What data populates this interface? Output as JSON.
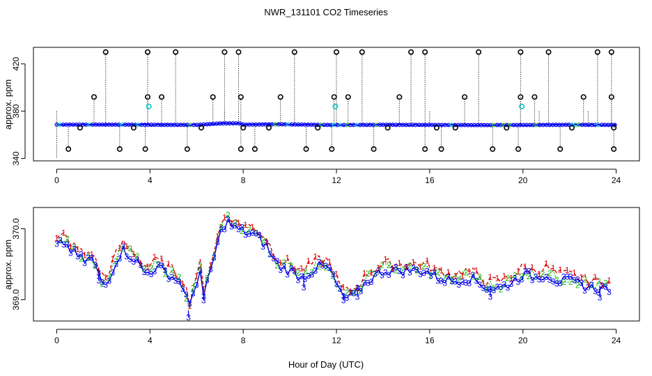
{
  "chart_data": {
    "title": "NWR_131101  CO2 Timeseries",
    "xlabel": "Hour of Day (UTC)",
    "x_ticks": [
      0,
      4,
      8,
      12,
      16,
      20,
      24
    ],
    "colors": {
      "black": "#000000",
      "blue": "#0000ee",
      "cyan": "#00cccc",
      "red": "#dd0000",
      "green": "#22bb22",
      "drop": "#444444"
    },
    "panels": [
      {
        "type": "scatter",
        "ylabel": "approx. ppm",
        "xlim": [
          -1,
          25
        ],
        "ylim": [
          338,
          434
        ],
        "y_ticks": [
          340,
          380,
          420
        ],
        "baseline": [
          [
            0,
            368.6
          ],
          [
            2,
            368.6
          ],
          [
            4,
            368.5
          ],
          [
            6,
            368.4
          ],
          [
            7,
            369.6
          ],
          [
            7.8,
            369.8
          ],
          [
            8,
            368.6
          ],
          [
            9.5,
            368.9
          ],
          [
            12,
            368.3
          ],
          [
            14,
            368.5
          ],
          [
            16,
            368.4
          ],
          [
            18,
            368.2
          ],
          [
            20,
            368.3
          ],
          [
            22,
            368.5
          ],
          [
            24,
            368.4
          ]
        ],
        "spikes_high_430": [
          2.1,
          3.9,
          5.1,
          7.2,
          7.8,
          10.2,
          12.0,
          13.1,
          15.2,
          15.8,
          18.1,
          19.9,
          21.1,
          23.2,
          23.8
        ],
        "spikes_mid_392": [
          1.6,
          3.9,
          4.5,
          6.7,
          7.9,
          9.6,
          11.9,
          12.5,
          14.7,
          17.5,
          19.9,
          20.5,
          22.6,
          23.8
        ],
        "points_low_348": [
          0.5,
          2.7,
          3.8,
          5.6,
          7.9,
          8.5,
          10.7,
          11.8,
          13.6,
          15.8,
          16.5,
          18.7,
          19.8,
          21.6,
          23.9
        ],
        "points_366": [
          1.0,
          3.3,
          6.2,
          8.0,
          9.1,
          11.2,
          14.2,
          16.3,
          17.1,
          19.3,
          22.1,
          23.9
        ],
        "cyan_points_384": [
          3.95,
          11.95,
          19.95
        ]
      },
      {
        "type": "line",
        "ylabel": "approx. ppm",
        "xlim": [
          -1,
          25
        ],
        "ylim": [
          368.7,
          370.3
        ],
        "y_ticks": [
          369.0,
          370.0
        ],
        "y_tick_labels": [
          "369.0",
          "370.0"
        ],
        "series": [
          {
            "name": "1",
            "color": "#dd0000"
          },
          {
            "name": "2",
            "color": "#22bb22"
          },
          {
            "name": "3",
            "color": "#0000ee"
          }
        ],
        "profile": [
          [
            0,
            369.78
          ],
          [
            0.3,
            369.85
          ],
          [
            0.7,
            369.7
          ],
          [
            1.2,
            369.58
          ],
          [
            1.5,
            369.62
          ],
          [
            1.9,
            369.3
          ],
          [
            2.1,
            369.25
          ],
          [
            2.5,
            369.55
          ],
          [
            2.8,
            369.75
          ],
          [
            3.2,
            369.65
          ],
          [
            3.5,
            369.55
          ],
          [
            3.8,
            369.4
          ],
          [
            4.3,
            369.5
          ],
          [
            4.8,
            369.4
          ],
          [
            5.2,
            369.3
          ],
          [
            5.5,
            369.2
          ],
          [
            5.65,
            368.85
          ],
          [
            5.9,
            369.2
          ],
          [
            6.2,
            369.5
          ],
          [
            6.3,
            369.05
          ],
          [
            6.6,
            369.45
          ],
          [
            6.8,
            369.7
          ],
          [
            7.1,
            370.05
          ],
          [
            7.3,
            370.15
          ],
          [
            7.6,
            370.05
          ],
          [
            8.0,
            370.0
          ],
          [
            8.5,
            369.95
          ],
          [
            9.0,
            369.8
          ],
          [
            9.3,
            369.6
          ],
          [
            9.6,
            369.5
          ],
          [
            10.0,
            369.45
          ],
          [
            10.5,
            369.35
          ],
          [
            11.2,
            369.5
          ],
          [
            11.6,
            369.5
          ],
          [
            11.9,
            369.35
          ],
          [
            12.1,
            369.15
          ],
          [
            12.4,
            369.05
          ],
          [
            12.8,
            369.1
          ],
          [
            13.3,
            369.3
          ],
          [
            14.0,
            369.45
          ],
          [
            14.7,
            369.45
          ],
          [
            15.3,
            369.45
          ],
          [
            15.8,
            369.45
          ],
          [
            16.3,
            369.35
          ],
          [
            17.0,
            369.3
          ],
          [
            17.6,
            369.35
          ],
          [
            18.0,
            369.3
          ],
          [
            18.5,
            369.2
          ],
          [
            19.0,
            369.2
          ],
          [
            19.6,
            369.3
          ],
          [
            20.0,
            369.4
          ],
          [
            20.5,
            369.35
          ],
          [
            21.0,
            369.4
          ],
          [
            21.5,
            369.3
          ],
          [
            22.0,
            369.3
          ],
          [
            22.5,
            369.25
          ],
          [
            23.0,
            369.2
          ],
          [
            23.7,
            369.2
          ]
        ],
        "dips_series3": [
          [
            1.8,
            369.28
          ],
          [
            5.65,
            368.76
          ],
          [
            6.3,
            369.0
          ],
          [
            10.6,
            369.18
          ],
          [
            12.3,
            369.0
          ],
          [
            12.9,
            369.05
          ],
          [
            18.6,
            369.05
          ],
          [
            23.3,
            369.04
          ]
        ]
      }
    ]
  }
}
